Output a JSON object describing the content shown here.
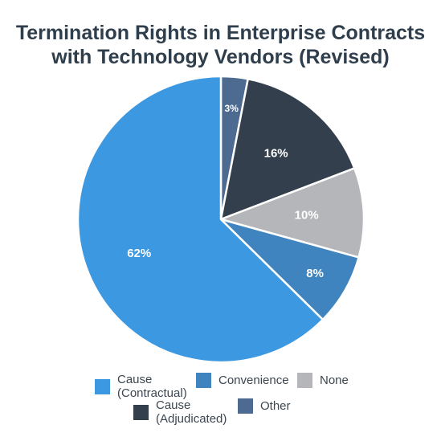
{
  "chart_data": {
    "type": "pie",
    "title_lines": [
      "Termination Rights in Enterprise Contracts",
      "with Technology Vendors (Revised)"
    ],
    "slices": [
      {
        "name": "Other",
        "legend_lines": [
          "Other"
        ],
        "value": 3,
        "label": "3%",
        "color": "#4d6a90"
      },
      {
        "name": "Cause (Adjudicated)",
        "legend_lines": [
          "Cause",
          "(Adjudicated)"
        ],
        "value": 16,
        "label": "16%",
        "color": "#333f4d"
      },
      {
        "name": "None",
        "legend_lines": [
          "None"
        ],
        "value": 10,
        "label": "10%",
        "color": "#b4b6b9"
      },
      {
        "name": "Convenience",
        "legend_lines": [
          "Convenience"
        ],
        "value": 8,
        "label": "8%",
        "color": "#3f84bf"
      },
      {
        "name": "Cause (Contractual)",
        "legend_lines": [
          "Cause",
          "(Contractual)"
        ],
        "value": 62,
        "label": "62%",
        "color": "#3c98e0"
      }
    ],
    "legend_order": [
      4,
      3,
      2,
      1,
      0
    ],
    "legend_placement": "bottom"
  }
}
